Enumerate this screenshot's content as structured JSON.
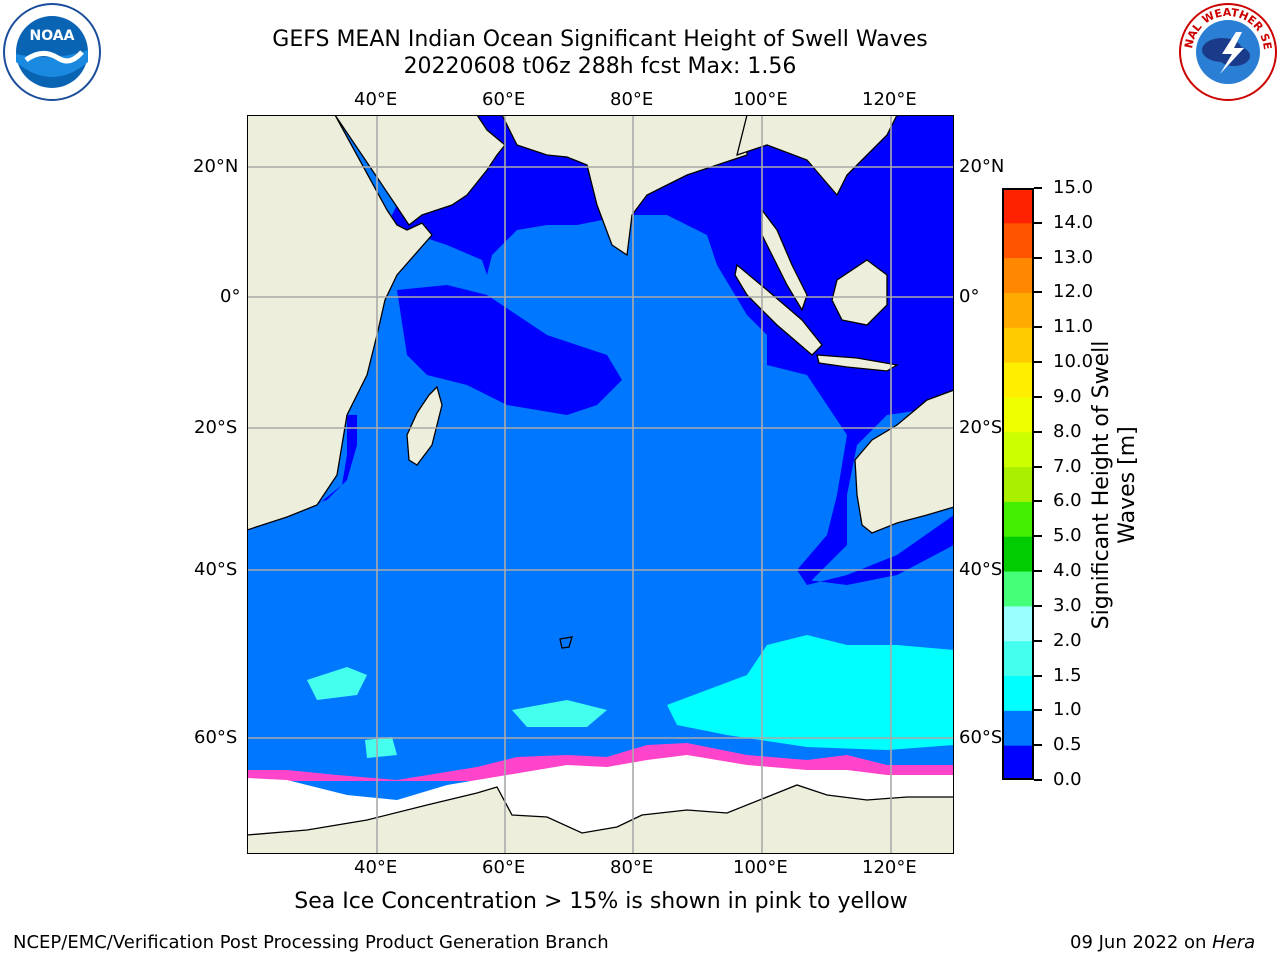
{
  "header": {
    "title_line1": "GEFS MEAN Indian Ocean Significant Height of Swell Waves",
    "title_line2": "20220608 t06z 288h fcst   Max: 1.56"
  },
  "logos": {
    "left": "NOAA",
    "right_text": "NATIONAL WEATHER SERVICE"
  },
  "axes": {
    "lon_ticks": [
      "40°E",
      "60°E",
      "80°E",
      "100°E",
      "120°E"
    ],
    "lat_ticks": [
      "20°N",
      "0°",
      "20°S",
      "40°S",
      "60°S"
    ]
  },
  "colorbar": {
    "label": "Significant Height of Swell Waves [m]",
    "ticks": [
      "0.0",
      "0.5",
      "1.0",
      "1.5",
      "2.0",
      "3.0",
      "4.0",
      "5.0",
      "6.0",
      "7.0",
      "8.0",
      "9.0",
      "10.0",
      "11.0",
      "12.0",
      "13.0",
      "14.0",
      "15.0"
    ],
    "colors": [
      "#0000ff",
      "#0077ff",
      "#00ffff",
      "#44ffee",
      "#99ffff",
      "#44ff77",
      "#00cc00",
      "#44ee00",
      "#aaee00",
      "#ccff00",
      "#eeff00",
      "#ffee00",
      "#ffcc00",
      "#ffaa00",
      "#ff8800",
      "#ff5500",
      "#ff2200"
    ]
  },
  "map_colors": {
    "land": "#eeeedd",
    "ocean_low": "#0000ff",
    "ocean_mid": "#0077ff",
    "ocean_high": "#00ffff",
    "ice": "#ffffff",
    "ice_edge": "#ff44cc",
    "grid": "#aaaaaa"
  },
  "note": "Sea Ice Concentration > 15% is shown in pink to yellow",
  "footer": {
    "left": "NCEP/EMC/Verification Post Processing Product Generation Branch",
    "date": "09 Jun 2022 on ",
    "machine": "Hera"
  }
}
